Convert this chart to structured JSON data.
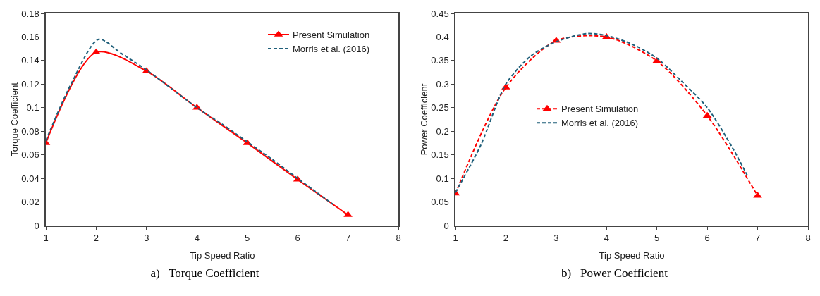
{
  "chart_data": [
    {
      "type": "line",
      "title": "a)   Torque Coefficient",
      "xlabel": "Tip Speed Ratio",
      "ylabel": "Torque Coefficient",
      "xlim": [
        1,
        8
      ],
      "xticks": [
        1,
        2,
        3,
        4,
        5,
        6,
        7,
        8
      ],
      "ylim": [
        0,
        0.18
      ],
      "yticks": [
        0,
        0.02,
        0.04,
        0.06,
        0.08,
        0.1,
        0.12,
        0.14,
        0.16,
        0.18
      ],
      "grid": false,
      "legend": "top right",
      "x": [
        1,
        2,
        3,
        4,
        5,
        6,
        7
      ],
      "series": [
        {
          "name": "Present Simulation",
          "color": "#ff0000",
          "marker": "triangle",
          "line_style": "solid",
          "values": [
            0.07,
            0.147,
            0.131,
            0.1,
            0.07,
            0.039,
            0.009
          ]
        },
        {
          "name": "Morris et al. (2016)",
          "color": "#1f5f7a",
          "marker": "none",
          "line_style": "dashed",
          "x": [
            1,
            1.5,
            2.05,
            2.5,
            3,
            3.5,
            4,
            4.5,
            5,
            5.5,
            6,
            6.7
          ],
          "values": [
            0.072,
            0.12,
            0.158,
            0.146,
            0.132,
            0.116,
            0.1,
            0.086,
            0.071,
            0.056,
            0.04,
            0.018
          ]
        }
      ]
    },
    {
      "type": "line",
      "title": "b)   Power Coefficient",
      "xlabel": "Tip Speed Ratio",
      "ylabel": "Power Coefficient",
      "xlim": [
        1,
        8
      ],
      "xticks": [
        1,
        2,
        3,
        4,
        5,
        6,
        7,
        8
      ],
      "ylim": [
        0,
        0.45
      ],
      "yticks": [
        0,
        0.05,
        0.1,
        0.15,
        0.2,
        0.25,
        0.3,
        0.35,
        0.4,
        0.45
      ],
      "grid": false,
      "legend": "center",
      "x": [
        1,
        2,
        3,
        4,
        5,
        6,
        7
      ],
      "series": [
        {
          "name": "Present Simulation",
          "color": "#ff0000",
          "marker": "triangle",
          "line_style": "dashed",
          "values": [
            0.068,
            0.293,
            0.392,
            0.4,
            0.349,
            0.233,
            0.063
          ]
        },
        {
          "name": "Morris et al. (2016)",
          "color": "#1f5f7a",
          "marker": "none",
          "line_style": "dashed",
          "x": [
            1,
            1.5,
            2,
            2.5,
            3,
            3.6,
            4,
            4.5,
            5,
            5.5,
            6,
            6.5,
            6.8
          ],
          "values": [
            0.07,
            0.17,
            0.3,
            0.36,
            0.39,
            0.407,
            0.403,
            0.385,
            0.355,
            0.305,
            0.25,
            0.165,
            0.105
          ]
        }
      ]
    }
  ]
}
